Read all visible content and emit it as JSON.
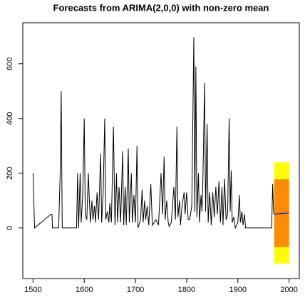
{
  "chart_data": {
    "type": "line",
    "title": "Forecasts from ARIMA(2,0,0) with non-zero mean",
    "x": [
      1500,
      1503,
      1535,
      1537,
      1538,
      1550,
      1553,
      1555,
      1557,
      1585,
      1587,
      1589,
      1592,
      1594,
      1597,
      1600,
      1602,
      1605,
      1608,
      1610,
      1612,
      1615,
      1617,
      1620,
      1622,
      1625,
      1628,
      1632,
      1634,
      1637,
      1640,
      1642,
      1645,
      1648,
      1650,
      1653,
      1657,
      1660,
      1663,
      1665,
      1668,
      1671,
      1675,
      1677,
      1680,
      1682,
      1686,
      1688,
      1692,
      1694,
      1697,
      1700,
      1703,
      1705,
      1710,
      1713,
      1715,
      1718,
      1720,
      1723,
      1726,
      1730,
      1733,
      1740,
      1745,
      1750,
      1753,
      1756,
      1758,
      1761,
      1764,
      1766,
      1770,
      1775,
      1778,
      1781,
      1783,
      1786,
      1788,
      1791,
      1795,
      1797,
      1800,
      1803,
      1806,
      1810,
      1814,
      1816,
      1818,
      1820,
      1823,
      1825,
      1828,
      1830,
      1832,
      1835,
      1837,
      1840,
      1842,
      1845,
      1848,
      1851,
      1854,
      1857,
      1860,
      1863,
      1866,
      1869,
      1871,
      1874,
      1877,
      1880,
      1883,
      1885,
      1887,
      1889,
      1892,
      1895,
      1900,
      1903,
      1905,
      1908,
      1910,
      1913,
      1915,
      1966,
      1968,
      1970
    ],
    "values": [
      200,
      0,
      50,
      50,
      0,
      0,
      200,
      500,
      0,
      0,
      200,
      0,
      200,
      20,
      120,
      400,
      50,
      30,
      200,
      100,
      20,
      100,
      30,
      80,
      20,
      130,
      30,
      270,
      20,
      130,
      400,
      30,
      60,
      20,
      90,
      20,
      370,
      10,
      200,
      20,
      150,
      20,
      280,
      10,
      150,
      10,
      290,
      20,
      200,
      20,
      120,
      20,
      300,
      0,
      30,
      140,
      20,
      100,
      30,
      80,
      10,
      160,
      10,
      30,
      10,
      200,
      50,
      260,
      30,
      100,
      20,
      5,
      20,
      150,
      30,
      370,
      40,
      100,
      10,
      80,
      130,
      50,
      130,
      30,
      30,
      80,
      697,
      60,
      590,
      40,
      200,
      20,
      120,
      60,
      200,
      530,
      60,
      380,
      20,
      130,
      10,
      130,
      40,
      150,
      50,
      170,
      20,
      150,
      10,
      180,
      30,
      50,
      400,
      60,
      210,
      20,
      40,
      0,
      20,
      120,
      20,
      60,
      10,
      50,
      0,
      0,
      160,
      50
    ],
    "color": "#000000",
    "forecast": {
      "x": [
        1971,
        2000
      ],
      "mean": [
        50,
        55
      ],
      "lo80": [
        -70,
        -70
      ],
      "hi80": [
        178,
        178
      ],
      "lo95": [
        -130,
        -130
      ],
      "hi95": [
        240,
        240
      ],
      "mean_color": "#0000ff",
      "color80": "#ff8c00",
      "color95": "#ffff00"
    },
    "xlim": [
      1480,
      2020
    ],
    "ylim": [
      -185,
      750
    ],
    "xticks": [
      1500,
      1600,
      1700,
      1800,
      1900,
      2000
    ],
    "yticks": [
      0,
      200,
      400,
      600
    ]
  }
}
